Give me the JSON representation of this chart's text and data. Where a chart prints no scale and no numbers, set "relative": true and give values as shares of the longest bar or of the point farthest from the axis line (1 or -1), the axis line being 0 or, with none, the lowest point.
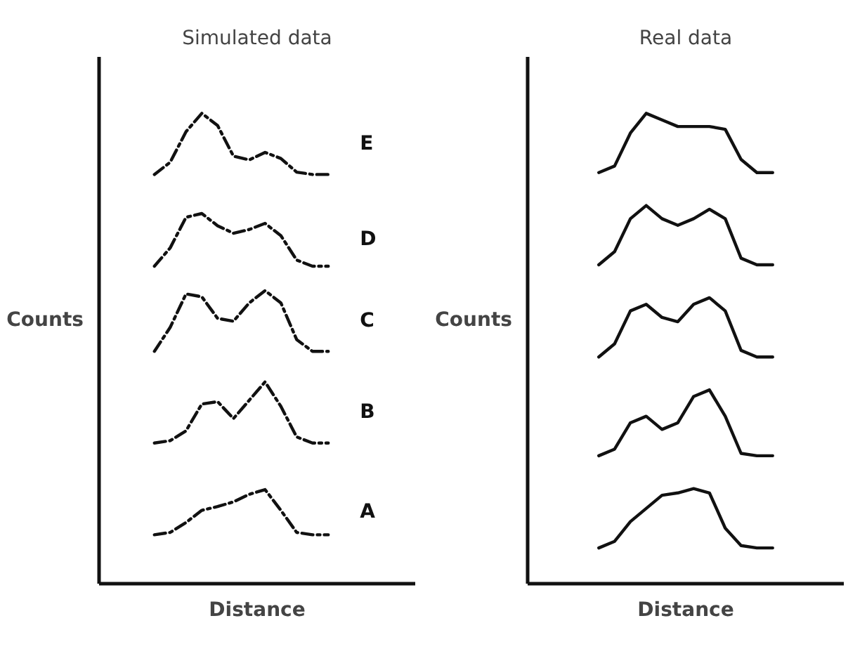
{
  "chart_data": [
    {
      "type": "line",
      "title": "Simulated data",
      "xlabel": "Distance",
      "ylabel": "Counts",
      "relative": true,
      "tick_labels": false,
      "grid": false,
      "marker": "none",
      "line_style": "dashed",
      "categories": [
        null,
        null,
        null,
        null,
        null,
        null,
        null,
        null,
        null,
        null,
        null,
        null,
        null,
        null,
        null,
        null,
        null,
        null,
        null,
        null
      ],
      "series": [
        {
          "name": "E",
          "color": "#111111",
          "values": [
            null,
            null,
            null,
            0.87,
            0.896,
            0.961,
            1.0,
            0.974,
            0.909,
            0.901,
            0.917,
            0.904,
            0.875,
            0.87,
            0.87,
            null,
            null,
            null,
            null,
            null
          ]
        },
        {
          "name": "D",
          "color": "#111111",
          "values": [
            null,
            null,
            null,
            0.675,
            0.714,
            0.779,
            0.787,
            0.761,
            0.745,
            0.753,
            0.766,
            0.74,
            0.688,
            0.675,
            0.675,
            null,
            null,
            null,
            null,
            null
          ]
        },
        {
          "name": "C",
          "color": "#111111",
          "values": [
            null,
            null,
            null,
            0.494,
            0.545,
            0.616,
            0.61,
            0.564,
            0.558,
            0.597,
            0.623,
            0.597,
            0.519,
            0.494,
            0.494,
            null,
            null,
            null,
            null,
            null
          ]
        },
        {
          "name": "B",
          "color": "#111111",
          "values": [
            null,
            null,
            null,
            0.299,
            0.304,
            0.325,
            0.382,
            0.387,
            0.351,
            0.39,
            0.429,
            0.377,
            0.312,
            0.299,
            0.299,
            null,
            null,
            null,
            null,
            null
          ]
        },
        {
          "name": "A",
          "color": "#111111",
          "values": [
            null,
            null,
            null,
            0.104,
            0.109,
            0.13,
            0.156,
            0.164,
            0.174,
            0.19,
            0.2,
            0.156,
            0.109,
            0.104,
            0.104,
            null,
            null,
            null,
            null,
            null
          ]
        }
      ]
    },
    {
      "type": "line",
      "title": "Real data",
      "xlabel": "Distance",
      "ylabel": "Counts",
      "relative": true,
      "tick_labels": false,
      "grid": false,
      "marker": "none",
      "line_style": "solid",
      "categories": [
        null,
        null,
        null,
        null,
        null,
        null,
        null,
        null,
        null,
        null,
        null,
        null,
        null,
        null,
        null,
        null,
        null,
        null,
        null,
        null
      ],
      "series": [
        {
          "color": "#111111",
          "values": [
            null,
            null,
            null,
            null,
            0.874,
            0.888,
            0.958,
            1.0,
            0.986,
            0.972,
            0.972,
            0.972,
            0.966,
            0.902,
            0.874,
            0.874,
            null,
            null,
            null,
            null
          ]
        },
        {
          "color": "#111111",
          "values": [
            null,
            null,
            null,
            null,
            0.678,
            0.706,
            0.776,
            0.804,
            0.776,
            0.762,
            0.776,
            0.796,
            0.776,
            0.692,
            0.678,
            0.678,
            null,
            null,
            null,
            null
          ]
        },
        {
          "color": "#111111",
          "values": [
            null,
            null,
            null,
            null,
            0.482,
            0.51,
            0.58,
            0.594,
            0.566,
            0.557,
            0.594,
            0.608,
            0.58,
            0.496,
            0.482,
            0.482,
            null,
            null,
            null,
            null
          ]
        },
        {
          "color": "#111111",
          "values": [
            null,
            null,
            null,
            null,
            0.272,
            0.286,
            0.342,
            0.356,
            0.328,
            0.342,
            0.398,
            0.412,
            0.356,
            0.277,
            0.272,
            0.272,
            null,
            null,
            null,
            null
          ]
        },
        {
          "color": "#111111",
          "values": [
            null,
            null,
            null,
            null,
            0.076,
            0.09,
            0.132,
            0.16,
            0.188,
            0.193,
            0.202,
            0.193,
            0.118,
            0.081,
            0.076,
            0.076,
            null,
            null,
            null,
            null
          ]
        }
      ]
    }
  ]
}
